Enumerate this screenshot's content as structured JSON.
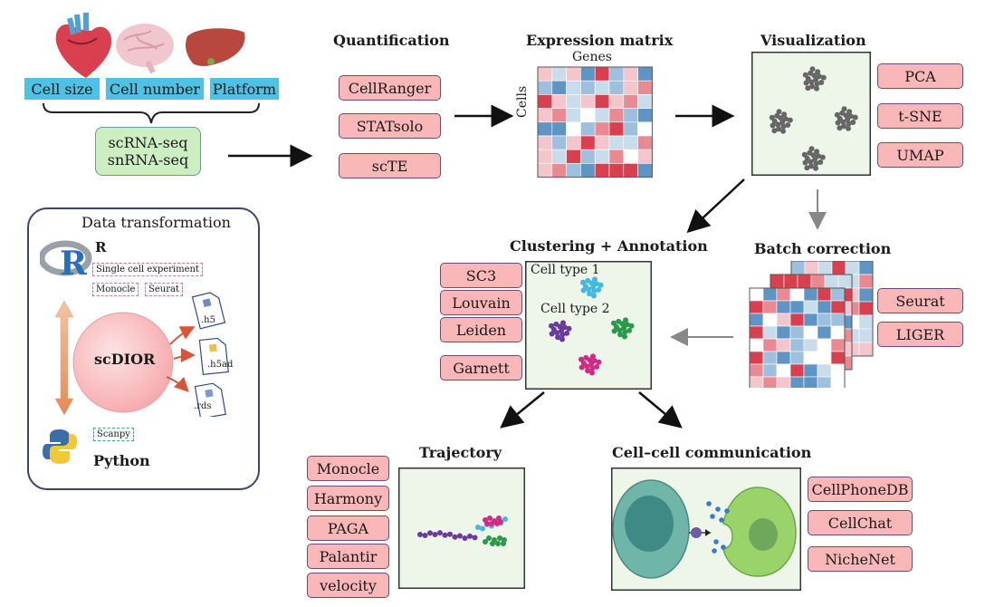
{
  "input": {
    "organs": [
      "heart-icon",
      "brain-icon",
      "liver-icon"
    ],
    "factors": [
      "Cell size",
      "Cell number",
      "Platform"
    ],
    "seq_types": [
      "scRNA-seq",
      "snRNA-seq"
    ]
  },
  "transform": {
    "title": "Data transformation",
    "r_label": "R",
    "r_packages": [
      "Single cell experiment",
      "Monocle",
      "Seurat"
    ],
    "center": "scDIOR",
    "files": [
      ".h5",
      ".h5ad",
      ".rds"
    ],
    "py_packages": [
      "Scanpy"
    ],
    "python_label": "Python"
  },
  "quantification": {
    "title": "Quantification",
    "tools": [
      "CellRanger",
      "STATsolo",
      "scTE"
    ]
  },
  "expression": {
    "title": "Expression matrix",
    "genes_label": "Genes",
    "cells_label": "Cells"
  },
  "visualization": {
    "title": "Visualization",
    "tools": [
      "PCA",
      "t-SNE",
      "UMAP"
    ]
  },
  "clustering": {
    "title": "Clustering + Annotation",
    "tools": [
      "SC3",
      "Louvain",
      "Leiden",
      "Garnett"
    ],
    "type1": "Cell type 1",
    "type2": "Cell type 2"
  },
  "batch": {
    "title": "Batch correction",
    "tools": [
      "Seurat",
      "LIGER"
    ]
  },
  "trajectory": {
    "title": "Trajectory",
    "tools": [
      "Monocle",
      "Harmony",
      "PAGA",
      "Palantir",
      "velocity"
    ]
  },
  "communication": {
    "title": "Cell–cell communication",
    "tools": [
      "CellPhoneDB",
      "CellChat",
      "NicheNet"
    ]
  },
  "colors": {
    "pill": "#f9b7b7",
    "factor": "#4fc1e2",
    "seq": "#cdeec1",
    "panel": "#eef6ea",
    "matrix_red": "#d9404f",
    "matrix_blue": "#5f95c5"
  }
}
